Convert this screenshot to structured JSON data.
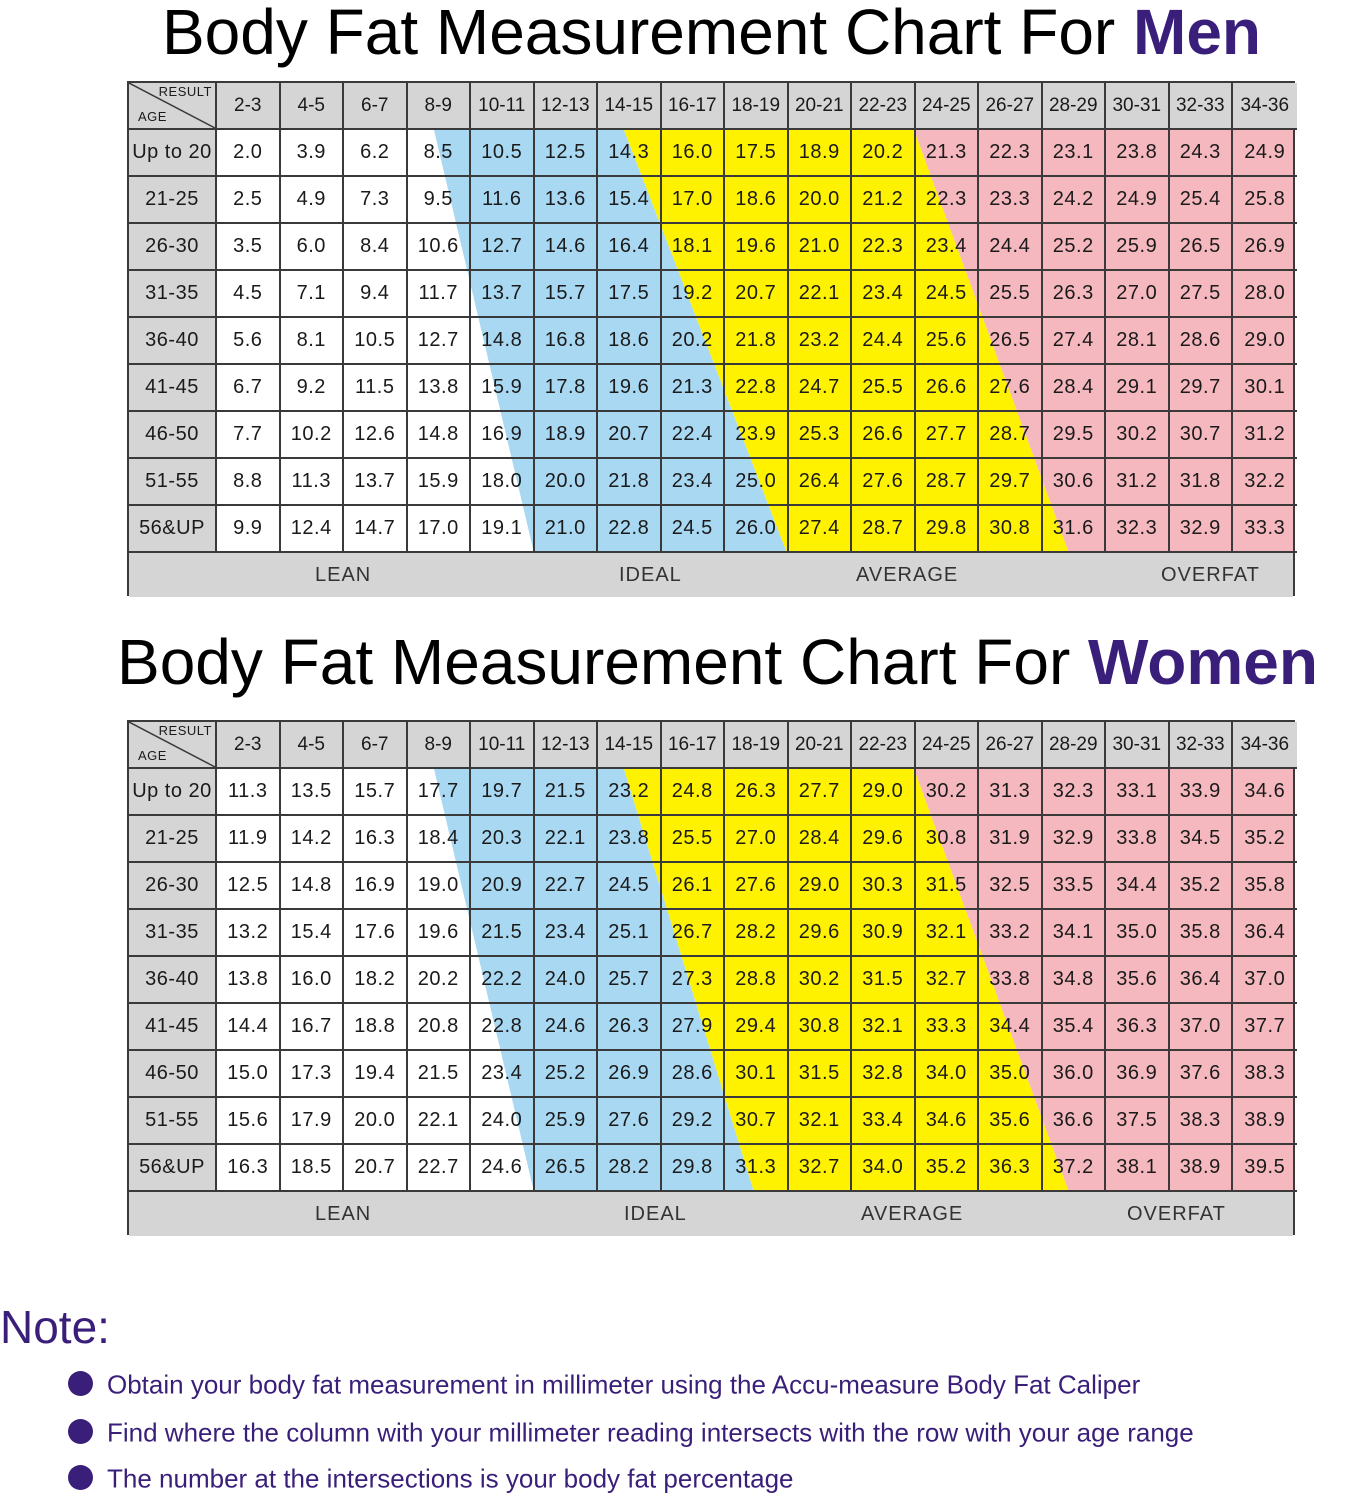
{
  "colors": {
    "accent": "#3a1f7a",
    "lean": "#ffffff",
    "ideal": "#a9d8f2",
    "average": "#fff200",
    "overfat": "#f4b8be",
    "header": "#d5d5d5"
  },
  "men": {
    "title_prefix": "Body Fat Measurement Chart For ",
    "title_highlight": "Men",
    "corner_result": "RESULT",
    "corner_age": "AGE",
    "footer": {
      "lean": "LEAN",
      "ideal": "IDEAL",
      "average": "AVERAGE",
      "overfat": "OVERFAT"
    }
  },
  "women": {
    "title_prefix": "Body Fat Measurement Chart For ",
    "title_highlight": "Women",
    "corner_result": "RESULT",
    "corner_age": "AGE",
    "footer": {
      "lean": "LEAN",
      "ideal": "IDEAL",
      "average": "AVERAGE",
      "overfat": "OVERFAT"
    }
  },
  "chart_data": [
    {
      "type": "table",
      "title": "Body Fat Measurement Chart For Men",
      "columns": [
        "2-3",
        "4-5",
        "6-7",
        "8-9",
        "10-11",
        "12-13",
        "14-15",
        "16-17",
        "18-19",
        "20-21",
        "22-23",
        "24-25",
        "26-27",
        "28-29",
        "30-31",
        "32-33",
        "34-36"
      ],
      "rows": [
        "Up to 20",
        "21-25",
        "26-30",
        "31-35",
        "36-40",
        "41-45",
        "46-50",
        "51-55",
        "56&UP"
      ],
      "values": [
        [
          "2.0",
          "3.9",
          "6.2",
          "8.5",
          "10.5",
          "12.5",
          "14.3",
          "16.0",
          "17.5",
          "18.9",
          "20.2",
          "21.3",
          "22.3",
          "23.1",
          "23.8",
          "24.3",
          "24.9"
        ],
        [
          "2.5",
          "4.9",
          "7.3",
          "9.5",
          "11.6",
          "13.6",
          "15.4",
          "17.0",
          "18.6",
          "20.0",
          "21.2",
          "22.3",
          "23.3",
          "24.2",
          "24.9",
          "25.4",
          "25.8"
        ],
        [
          "3.5",
          "6.0",
          "8.4",
          "10.6",
          "12.7",
          "14.6",
          "16.4",
          "18.1",
          "19.6",
          "21.0",
          "22.3",
          "23.4",
          "24.4",
          "25.2",
          "25.9",
          "26.5",
          "26.9"
        ],
        [
          "4.5",
          "7.1",
          "9.4",
          "11.7",
          "13.7",
          "15.7",
          "17.5",
          "19.2",
          "20.7",
          "22.1",
          "23.4",
          "24.5",
          "25.5",
          "26.3",
          "27.0",
          "27.5",
          "28.0"
        ],
        [
          "5.6",
          "8.1",
          "10.5",
          "12.7",
          "14.8",
          "16.8",
          "18.6",
          "20.2",
          "21.8",
          "23.2",
          "24.4",
          "25.6",
          "26.5",
          "27.4",
          "28.1",
          "28.6",
          "29.0"
        ],
        [
          "6.7",
          "9.2",
          "11.5",
          "13.8",
          "15.9",
          "17.8",
          "19.6",
          "21.3",
          "22.8",
          "24.7",
          "25.5",
          "26.6",
          "27.6",
          "28.4",
          "29.1",
          "29.7",
          "30.1"
        ],
        [
          "7.7",
          "10.2",
          "12.6",
          "14.8",
          "16.9",
          "18.9",
          "20.7",
          "22.4",
          "23.9",
          "25.3",
          "26.6",
          "27.7",
          "28.7",
          "29.5",
          "30.2",
          "30.7",
          "31.2"
        ],
        [
          "8.8",
          "11.3",
          "13.7",
          "15.9",
          "18.0",
          "20.0",
          "21.8",
          "23.4",
          "25.0",
          "26.4",
          "27.6",
          "28.7",
          "29.7",
          "30.6",
          "31.2",
          "31.8",
          "32.2"
        ],
        [
          "9.9",
          "12.4",
          "14.7",
          "17.0",
          "19.1",
          "21.0",
          "22.8",
          "24.5",
          "26.0",
          "27.4",
          "28.7",
          "29.8",
          "30.8",
          "31.6",
          "32.3",
          "32.9",
          "33.3"
        ]
      ],
      "categories": [
        "LEAN",
        "IDEAL",
        "AVERAGE",
        "OVERFAT"
      ]
    },
    {
      "type": "table",
      "title": "Body Fat Measurement Chart For Women",
      "columns": [
        "2-3",
        "4-5",
        "6-7",
        "8-9",
        "10-11",
        "12-13",
        "14-15",
        "16-17",
        "18-19",
        "20-21",
        "22-23",
        "24-25",
        "26-27",
        "28-29",
        "30-31",
        "32-33",
        "34-36"
      ],
      "rows": [
        "Up to 20",
        "21-25",
        "26-30",
        "31-35",
        "36-40",
        "41-45",
        "46-50",
        "51-55",
        "56&UP"
      ],
      "values": [
        [
          "11.3",
          "13.5",
          "15.7",
          "17.7",
          "19.7",
          "21.5",
          "23.2",
          "24.8",
          "26.3",
          "27.7",
          "29.0",
          "30.2",
          "31.3",
          "32.3",
          "33.1",
          "33.9",
          "34.6"
        ],
        [
          "11.9",
          "14.2",
          "16.3",
          "18.4",
          "20.3",
          "22.1",
          "23.8",
          "25.5",
          "27.0",
          "28.4",
          "29.6",
          "30.8",
          "31.9",
          "32.9",
          "33.8",
          "34.5",
          "35.2"
        ],
        [
          "12.5",
          "14.8",
          "16.9",
          "19.0",
          "20.9",
          "22.7",
          "24.5",
          "26.1",
          "27.6",
          "29.0",
          "30.3",
          "31.5",
          "32.5",
          "33.5",
          "34.4",
          "35.2",
          "35.8"
        ],
        [
          "13.2",
          "15.4",
          "17.6",
          "19.6",
          "21.5",
          "23.4",
          "25.1",
          "26.7",
          "28.2",
          "29.6",
          "30.9",
          "32.1",
          "33.2",
          "34.1",
          "35.0",
          "35.8",
          "36.4"
        ],
        [
          "13.8",
          "16.0",
          "18.2",
          "20.2",
          "22.2",
          "24.0",
          "25.7",
          "27.3",
          "28.8",
          "30.2",
          "31.5",
          "32.7",
          "33.8",
          "34.8",
          "35.6",
          "36.4",
          "37.0"
        ],
        [
          "14.4",
          "16.7",
          "18.8",
          "20.8",
          "22.8",
          "24.6",
          "26.3",
          "27.9",
          "29.4",
          "30.8",
          "32.1",
          "33.3",
          "34.4",
          "35.4",
          "36.3",
          "37.0",
          "37.7"
        ],
        [
          "15.0",
          "17.3",
          "19.4",
          "21.5",
          "23.4",
          "25.2",
          "26.9",
          "28.6",
          "30.1",
          "31.5",
          "32.8",
          "34.0",
          "35.0",
          "36.0",
          "36.9",
          "37.6",
          "38.3"
        ],
        [
          "15.6",
          "17.9",
          "20.0",
          "22.1",
          "24.0",
          "25.9",
          "27.6",
          "29.2",
          "30.7",
          "32.1",
          "33.4",
          "34.6",
          "35.6",
          "36.6",
          "37.5",
          "38.3",
          "38.9"
        ],
        [
          "16.3",
          "18.5",
          "20.7",
          "22.7",
          "24.6",
          "26.5",
          "28.2",
          "29.8",
          "31.3",
          "32.7",
          "34.0",
          "35.2",
          "36.3",
          "37.2",
          "38.1",
          "38.9",
          "39.5"
        ]
      ],
      "categories": [
        "LEAN",
        "IDEAL",
        "AVERAGE",
        "OVERFAT"
      ]
    }
  ],
  "note": {
    "title": "Note:",
    "items": [
      "Obtain your body fat measurement in millimeter using the Accu-measure Body Fat Caliper",
      "Find where the column with your millimeter reading intersects with the row with your age range",
      "The number at the intersections is your body fat percentage"
    ]
  }
}
